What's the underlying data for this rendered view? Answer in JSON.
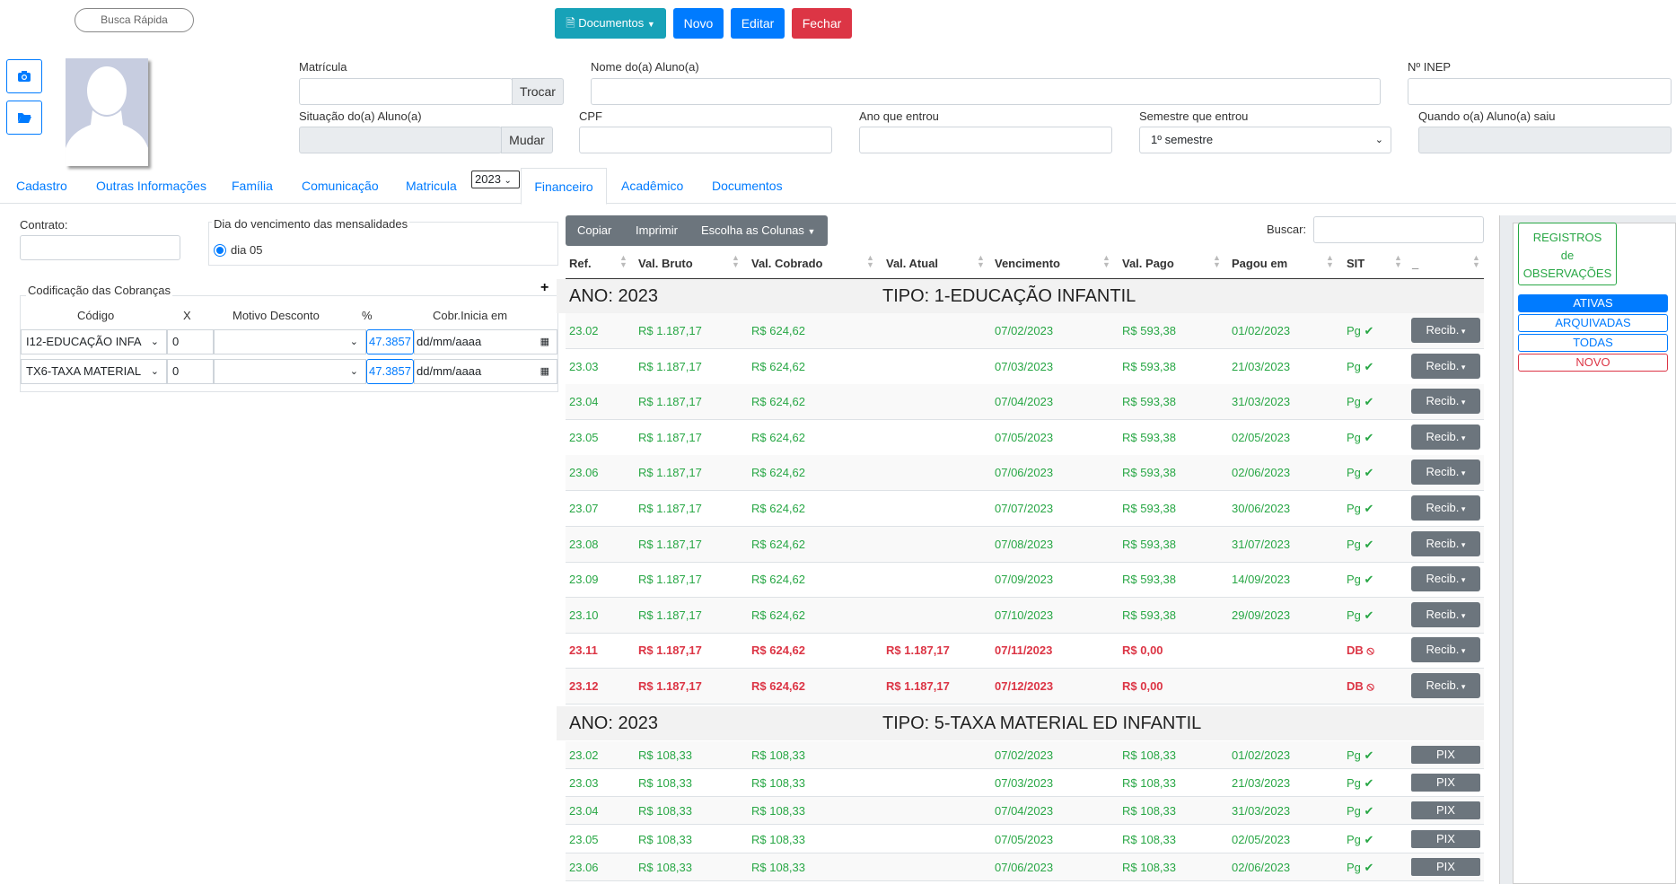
{
  "header": {
    "quick_search": "Busca Rápida",
    "documents_label": "Documentos",
    "new_label": "Novo",
    "edit_label": "Editar",
    "close_label": "Fechar"
  },
  "form": {
    "matricula_label": "Matrícula",
    "trocar_label": "Trocar",
    "nome_label": "Nome do(a) Aluno(a)",
    "inep_label": "Nº INEP",
    "situacao_label": "Situação do(a) Aluno(a)",
    "mudar_label": "Mudar",
    "cpf_label": "CPF",
    "ano_label": "Ano que entrou",
    "semestre_label": "Semestre que entrou",
    "semestre_value": "1º semestre",
    "saiu_label": "Quando o(a) Aluno(a) saiu"
  },
  "tabs": {
    "cadastro": "Cadastro",
    "outras": "Outras Informações",
    "familia": "Família",
    "comunicacao": "Comunicação",
    "matricula": "Matricula",
    "year": "2023",
    "financeiro": "Financeiro",
    "academico": "Acadêmico",
    "documentos": "Documentos"
  },
  "left": {
    "contrato_label": "Contrato:",
    "vencimento_label": "Dia do vencimento das mensalidades",
    "vencimento_value": "dia 05",
    "codificacao_label": "Codificação das Cobranças",
    "add_symbol": "+",
    "col_codigo": "Código",
    "col_x": "X",
    "col_motivo": "Motivo Desconto",
    "col_pct": "%",
    "col_cobr": "Cobr.Inicia em",
    "rows": [
      {
        "codigo": "I12-EDUCAÇÃO INFA",
        "x": "0",
        "pct": "47.3857",
        "date": "dd/mm/aaaa"
      },
      {
        "codigo": "TX6-TAXA MATERIAL",
        "x": "0",
        "pct": "47.3857",
        "date": "dd/mm/aaaa"
      }
    ]
  },
  "table": {
    "copy_label": "Copiar",
    "print_label": "Imprimir",
    "columns_label": "Escolha as Colunas",
    "search_label": "Buscar:",
    "headers": {
      "ref": "Ref.",
      "bruto": "Val. Bruto",
      "cobrado": "Val. Cobrado",
      "atual": "Val. Atual",
      "venc": "Vencimento",
      "pago": "Val. Pago",
      "pagoem": "Pagou em",
      "sit": "SIT",
      "extra": "_"
    },
    "group1": {
      "ano": "ANO: 2023",
      "tipo": "TIPO: 1-EDUCAÇÃO INFANTIL"
    },
    "group2": {
      "ano": "ANO: 2023",
      "tipo": "TIPO: 5-TAXA MATERIAL ED INFANTIL"
    },
    "recib_label": "Recib.",
    "pix_label": "PIX",
    "rows1": [
      {
        "ref": "23.02",
        "bruto": "R$ 1.187,17",
        "cobrado": "R$ 624,62",
        "atual": "",
        "venc": "07/02/2023",
        "pago": "R$ 593,38",
        "pagoem": "01/02/2023",
        "sit": "Pg",
        "status": "paid"
      },
      {
        "ref": "23.03",
        "bruto": "R$ 1.187,17",
        "cobrado": "R$ 624,62",
        "atual": "",
        "venc": "07/03/2023",
        "pago": "R$ 593,38",
        "pagoem": "21/03/2023",
        "sit": "Pg",
        "status": "paid"
      },
      {
        "ref": "23.04",
        "bruto": "R$ 1.187,17",
        "cobrado": "R$ 624,62",
        "atual": "",
        "venc": "07/04/2023",
        "pago": "R$ 593,38",
        "pagoem": "31/03/2023",
        "sit": "Pg",
        "status": "paid"
      },
      {
        "ref": "23.05",
        "bruto": "R$ 1.187,17",
        "cobrado": "R$ 624,62",
        "atual": "",
        "venc": "07/05/2023",
        "pago": "R$ 593,38",
        "pagoem": "02/05/2023",
        "sit": "Pg",
        "status": "paid"
      },
      {
        "ref": "23.06",
        "bruto": "R$ 1.187,17",
        "cobrado": "R$ 624,62",
        "atual": "",
        "venc": "07/06/2023",
        "pago": "R$ 593,38",
        "pagoem": "02/06/2023",
        "sit": "Pg",
        "status": "paid"
      },
      {
        "ref": "23.07",
        "bruto": "R$ 1.187,17",
        "cobrado": "R$ 624,62",
        "atual": "",
        "venc": "07/07/2023",
        "pago": "R$ 593,38",
        "pagoem": "30/06/2023",
        "sit": "Pg",
        "status": "paid"
      },
      {
        "ref": "23.08",
        "bruto": "R$ 1.187,17",
        "cobrado": "R$ 624,62",
        "atual": "",
        "venc": "07/08/2023",
        "pago": "R$ 593,38",
        "pagoem": "31/07/2023",
        "sit": "Pg",
        "status": "paid"
      },
      {
        "ref": "23.09",
        "bruto": "R$ 1.187,17",
        "cobrado": "R$ 624,62",
        "atual": "",
        "venc": "07/09/2023",
        "pago": "R$ 593,38",
        "pagoem": "14/09/2023",
        "sit": "Pg",
        "status": "paid"
      },
      {
        "ref": "23.10",
        "bruto": "R$ 1.187,17",
        "cobrado": "R$ 624,62",
        "atual": "",
        "venc": "07/10/2023",
        "pago": "R$ 593,38",
        "pagoem": "29/09/2023",
        "sit": "Pg",
        "status": "paid"
      },
      {
        "ref": "23.11",
        "bruto": "R$ 1.187,17",
        "cobrado": "R$ 624,62",
        "atual": "R$ 1.187,17",
        "venc": "07/11/2023",
        "pago": "R$ 0,00",
        "pagoem": "",
        "sit": "DB",
        "status": "due"
      },
      {
        "ref": "23.12",
        "bruto": "R$ 1.187,17",
        "cobrado": "R$ 624,62",
        "atual": "R$ 1.187,17",
        "venc": "07/12/2023",
        "pago": "R$ 0,00",
        "pagoem": "",
        "sit": "DB",
        "status": "due"
      }
    ],
    "rows2": [
      {
        "ref": "23.02",
        "bruto": "R$ 108,33",
        "cobrado": "R$ 108,33",
        "venc": "07/02/2023",
        "pago": "R$ 108,33",
        "pagoem": "01/02/2023",
        "sit": "Pg"
      },
      {
        "ref": "23.03",
        "bruto": "R$ 108,33",
        "cobrado": "R$ 108,33",
        "venc": "07/03/2023",
        "pago": "R$ 108,33",
        "pagoem": "21/03/2023",
        "sit": "Pg"
      },
      {
        "ref": "23.04",
        "bruto": "R$ 108,33",
        "cobrado": "R$ 108,33",
        "venc": "07/04/2023",
        "pago": "R$ 108,33",
        "pagoem": "31/03/2023",
        "sit": "Pg"
      },
      {
        "ref": "23.05",
        "bruto": "R$ 108,33",
        "cobrado": "R$ 108,33",
        "venc": "07/05/2023",
        "pago": "R$ 108,33",
        "pagoem": "02/05/2023",
        "sit": "Pg"
      },
      {
        "ref": "23.06",
        "bruto": "R$ 108,33",
        "cobrado": "R$ 108,33",
        "venc": "07/06/2023",
        "pago": "R$ 108,33",
        "pagoem": "02/06/2023",
        "sit": "Pg"
      }
    ]
  },
  "obs": {
    "title1": "REGISTROS",
    "title2": "de",
    "title3": "OBSERVAÇÕES",
    "ativas": "ATIVAS",
    "arquivadas": "ARQUIVADAS",
    "todas": "TODAS",
    "novo": "NOVO"
  },
  "icons": {
    "camera": "camera-icon",
    "folder": "folder-icon",
    "check": "check-icon",
    "ban": "ban-icon"
  },
  "colors": {
    "green": "#28a745",
    "red": "#dc3545",
    "blue": "#007bff",
    "teal": "#17a2b8",
    "gray": "#6c757d"
  }
}
